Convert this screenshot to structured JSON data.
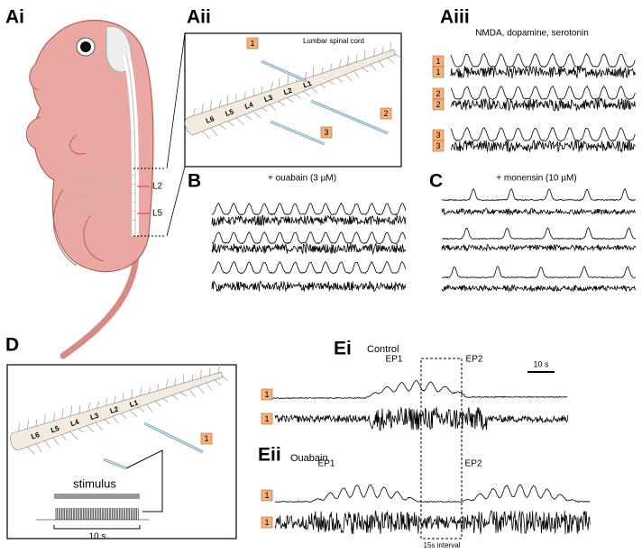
{
  "panels": {
    "Ai": {
      "label": "Ai",
      "segments": [
        "L2",
        "L5"
      ]
    },
    "Aii": {
      "label": "Aii",
      "title": "Lumbar spinal cord",
      "segments": [
        "L1",
        "L2",
        "L3",
        "L4",
        "L5",
        "L6"
      ],
      "electrodes": [
        "1",
        "2",
        "3"
      ]
    },
    "Aiii": {
      "label": "Aiii",
      "title": "NMDA, dopamine, serotonin",
      "channels": [
        "1",
        "1",
        "2",
        "2",
        "3",
        "3"
      ]
    },
    "B": {
      "label": "B",
      "title": "+ ouabain (3 µM)"
    },
    "C": {
      "label": "C",
      "title": "+ monensin (10 µM)"
    },
    "D": {
      "label": "D",
      "segments": [
        "L1",
        "L2",
        "L3",
        "L4",
        "L5",
        "L6"
      ],
      "electrode": "1",
      "stimulus": "stimulus",
      "scale": "10 s"
    },
    "Ei": {
      "label": "Ei",
      "condition": "Control",
      "events": [
        "EP1",
        "EP2"
      ],
      "scale": "10 s",
      "channels": [
        "1",
        "1"
      ]
    },
    "Eii": {
      "label": "Eii",
      "condition": "Ouabain",
      "events": [
        "EP1",
        "EP2"
      ],
      "channels": [
        "1",
        "1"
      ],
      "interval": "15s interval"
    }
  }
}
